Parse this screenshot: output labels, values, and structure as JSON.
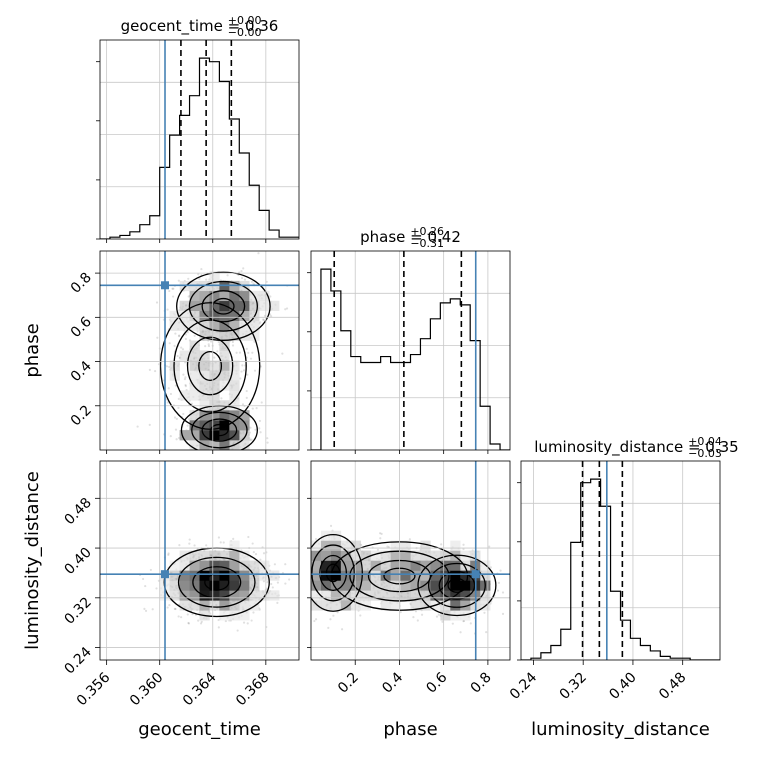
{
  "figure_title": "",
  "chart_data": {
    "type": "corner",
    "truth_color": "#4682b4",
    "parameters": [
      {
        "name": "geocent_time",
        "label": "geocent_time",
        "range": [
          0.3555,
          0.3705
        ],
        "ticks": [
          0.356,
          0.36,
          0.364,
          0.368
        ],
        "tick_labels": [
          "0.356",
          "0.360",
          "0.364",
          "0.368"
        ],
        "truth": 0.3604,
        "title": {
          "main": "geocent_time = 0.36",
          "sup": "+0.00",
          "sub": "−0.00"
        },
        "quantiles": [
          0.3616,
          0.3635,
          0.3654
        ],
        "hist_edges_start": 0.3555,
        "hist_bin_width": 0.00075,
        "hist_counts": [
          0,
          1,
          2,
          4,
          8,
          13,
          40,
          58,
          69,
          80,
          101,
          99,
          88,
          67,
          48,
          30,
          16,
          5,
          1,
          1
        ]
      },
      {
        "name": "phase",
        "label": "phase",
        "range": [
          0.0,
          0.9
        ],
        "ticks": [
          0.2,
          0.4,
          0.6,
          0.8
        ],
        "tick_labels": [
          "0.2",
          "0.4",
          "0.6",
          "0.8"
        ],
        "truth": 0.745,
        "title": {
          "main": "phase = 0.42",
          "sup": "+0.26",
          "sub": "−0.31"
        },
        "quantiles": [
          0.105,
          0.42,
          0.68
        ],
        "hist_edges_start": 0.0,
        "hist_bin_width": 0.045,
        "hist_counts": [
          0,
          91,
          80,
          60,
          47,
          44,
          44,
          47,
          44,
          44,
          48,
          56,
          66,
          74,
          76,
          73,
          55,
          22,
          3,
          0
        ]
      },
      {
        "name": "luminosity_distance",
        "label": "luminosity_distance",
        "range": [
          0.22,
          0.54
        ],
        "ticks": [
          0.24,
          0.32,
          0.4,
          0.48
        ],
        "tick_labels": [
          "0.24",
          "0.32",
          "0.40",
          "0.48"
        ],
        "truth": 0.358,
        "title": {
          "main": "luminosity_distance = 0.35",
          "sup": "+0.04",
          "sub": "−0.03"
        },
        "quantiles": [
          0.319,
          0.346,
          0.383
        ],
        "hist_edges_start": 0.22,
        "hist_bin_width": 0.016,
        "hist_counts": [
          0,
          1,
          4,
          8,
          17,
          65,
          98,
          100,
          85,
          38,
          22,
          12,
          8,
          5,
          2,
          1,
          1,
          0,
          0,
          0
        ]
      }
    ],
    "scatter_2d": [
      {
        "x_param": "geocent_time",
        "y_param": "phase",
        "modes": [
          {
            "x": 0.3645,
            "y": 0.09,
            "sx": 0.0013,
            "sy": 0.05,
            "weight": 0.35
          },
          {
            "x": 0.3648,
            "y": 0.65,
            "sx": 0.0016,
            "sy": 0.07,
            "weight": 0.4
          },
          {
            "x": 0.3638,
            "y": 0.38,
            "sx": 0.0017,
            "sy": 0.13,
            "weight": 0.25
          }
        ]
      },
      {
        "x_param": "geocent_time",
        "y_param": "luminosity_distance",
        "modes": [
          {
            "x": 0.3643,
            "y": 0.345,
            "sx": 0.0018,
            "sy": 0.025,
            "weight": 1.0
          }
        ]
      },
      {
        "x_param": "phase",
        "y_param": "luminosity_distance",
        "modes": [
          {
            "x": 0.66,
            "y": 0.34,
            "sx": 0.08,
            "sy": 0.022,
            "weight": 0.4
          },
          {
            "x": 0.1,
            "y": 0.36,
            "sx": 0.06,
            "sy": 0.028,
            "weight": 0.3
          },
          {
            "x": 0.4,
            "y": 0.355,
            "sx": 0.14,
            "sy": 0.025,
            "weight": 0.3
          }
        ]
      }
    ],
    "grid": true
  }
}
